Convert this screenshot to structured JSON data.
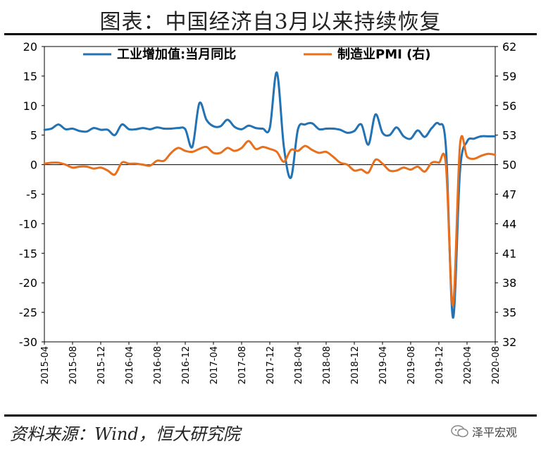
{
  "title": "图表：中国经济自3月以来持续恢复",
  "source": "资料来源：Wind，恒大研究院",
  "brand": "泽平宏观",
  "colors": {
    "ip": "#2272b4",
    "pmi": "#e8701c"
  },
  "chart_data": {
    "type": "line",
    "grid": false,
    "legend_position": "top",
    "x_tick_labels": [
      "2015-04",
      "2015-08",
      "2015-12",
      "2016-04",
      "2016-08",
      "2016-12",
      "2017-04",
      "2017-08",
      "2017-12",
      "2018-04",
      "2018-08",
      "2018-12",
      "2019-04",
      "2019-08",
      "2019-12",
      "2020-04",
      "2020-08"
    ],
    "x_start": "2015-04",
    "x_end": "2020-08",
    "left_axis": {
      "ylim": [
        -30,
        20
      ],
      "ticks": [
        20,
        15,
        10,
        5,
        0,
        -5,
        -10,
        -15,
        -20,
        -25,
        -30
      ]
    },
    "right_axis": {
      "ylim": [
        32,
        62
      ],
      "ticks": [
        "62",
        "59",
        "56",
        "53",
        "50",
        "47",
        "44",
        "41",
        "38",
        "35",
        "32"
      ]
    },
    "series": [
      {
        "name": "工业增加值:当月同比",
        "axis": "left",
        "color": "#2272b4",
        "x": [
          "2015-04",
          "2015-05",
          "2015-06",
          "2015-07",
          "2015-08",
          "2015-09",
          "2015-10",
          "2015-11",
          "2015-12",
          "2016-01",
          "2016-02",
          "2016-03",
          "2016-04",
          "2016-05",
          "2016-06",
          "2016-07",
          "2016-08",
          "2016-09",
          "2016-10",
          "2016-11",
          "2016-12",
          "2017-01",
          "2017-02",
          "2017-03",
          "2017-04",
          "2017-05",
          "2017-06",
          "2017-07",
          "2017-08",
          "2017-09",
          "2017-10",
          "2017-11",
          "2017-12",
          "2018-01",
          "2018-02",
          "2018-03",
          "2018-04",
          "2018-05",
          "2018-06",
          "2018-07",
          "2018-08",
          "2018-09",
          "2018-10",
          "2018-11",
          "2018-12",
          "2019-01",
          "2019-02",
          "2019-03",
          "2019-04",
          "2019-05",
          "2019-06",
          "2019-07",
          "2019-08",
          "2019-09",
          "2019-10",
          "2019-11",
          "2019-12",
          "2020-01",
          "2020-02",
          "2020-03",
          "2020-04",
          "2020-05",
          "2020-06",
          "2020-07",
          "2020-08"
        ],
        "values": [
          5.9,
          6.1,
          6.8,
          6.0,
          6.1,
          5.7,
          5.6,
          6.2,
          5.9,
          5.9,
          5.0,
          6.8,
          6.0,
          6.0,
          6.2,
          6.0,
          6.3,
          6.1,
          6.1,
          6.2,
          6.0,
          3.0,
          10.4,
          7.6,
          6.5,
          6.5,
          7.6,
          6.4,
          6.0,
          6.6,
          6.2,
          6.1,
          6.2,
          15.6,
          3.0,
          -2.2,
          6.0,
          6.8,
          7.0,
          6.0,
          6.1,
          6.1,
          5.9,
          5.4,
          5.7,
          6.8,
          3.4,
          8.5,
          5.4,
          5.0,
          6.3,
          4.8,
          4.4,
          5.8,
          4.7,
          6.2,
          6.9,
          3.0,
          -25.9,
          -1.1,
          3.9,
          4.4,
          4.8,
          4.8,
          4.8
        ]
      },
      {
        "name": "制造业PMI (右)",
        "axis": "right",
        "color": "#e8701c",
        "x": [
          "2015-04",
          "2015-05",
          "2015-06",
          "2015-07",
          "2015-08",
          "2015-09",
          "2015-10",
          "2015-11",
          "2015-12",
          "2016-01",
          "2016-02",
          "2016-03",
          "2016-04",
          "2016-05",
          "2016-06",
          "2016-07",
          "2016-08",
          "2016-09",
          "2016-10",
          "2016-11",
          "2016-12",
          "2017-01",
          "2017-02",
          "2017-03",
          "2017-04",
          "2017-05",
          "2017-06",
          "2017-07",
          "2017-08",
          "2017-09",
          "2017-10",
          "2017-11",
          "2017-12",
          "2018-01",
          "2018-02",
          "2018-03",
          "2018-04",
          "2018-05",
          "2018-06",
          "2018-07",
          "2018-08",
          "2018-09",
          "2018-10",
          "2018-11",
          "2018-12",
          "2019-01",
          "2019-02",
          "2019-03",
          "2019-04",
          "2019-05",
          "2019-06",
          "2019-07",
          "2019-08",
          "2019-09",
          "2019-10",
          "2019-11",
          "2019-12",
          "2020-01",
          "2020-02",
          "2020-03",
          "2020-04",
          "2020-05",
          "2020-06",
          "2020-07",
          "2020-08"
        ],
        "values": [
          50.1,
          50.2,
          50.2,
          50.0,
          49.7,
          49.8,
          49.8,
          49.6,
          49.7,
          49.4,
          49.0,
          50.2,
          50.1,
          50.1,
          50.0,
          49.9,
          50.4,
          50.4,
          51.2,
          51.7,
          51.4,
          51.3,
          51.6,
          51.8,
          51.2,
          51.2,
          51.7,
          51.4,
          51.7,
          52.4,
          51.6,
          51.8,
          51.6,
          51.3,
          50.3,
          51.5,
          51.4,
          51.9,
          51.5,
          51.2,
          51.3,
          50.8,
          50.2,
          50.0,
          49.4,
          49.5,
          49.2,
          50.5,
          50.1,
          49.4,
          49.4,
          49.7,
          49.5,
          49.8,
          49.3,
          50.2,
          50.2,
          50.0,
          35.7,
          52.0,
          50.8,
          50.6,
          50.9,
          51.1,
          51.0
        ]
      }
    ]
  }
}
